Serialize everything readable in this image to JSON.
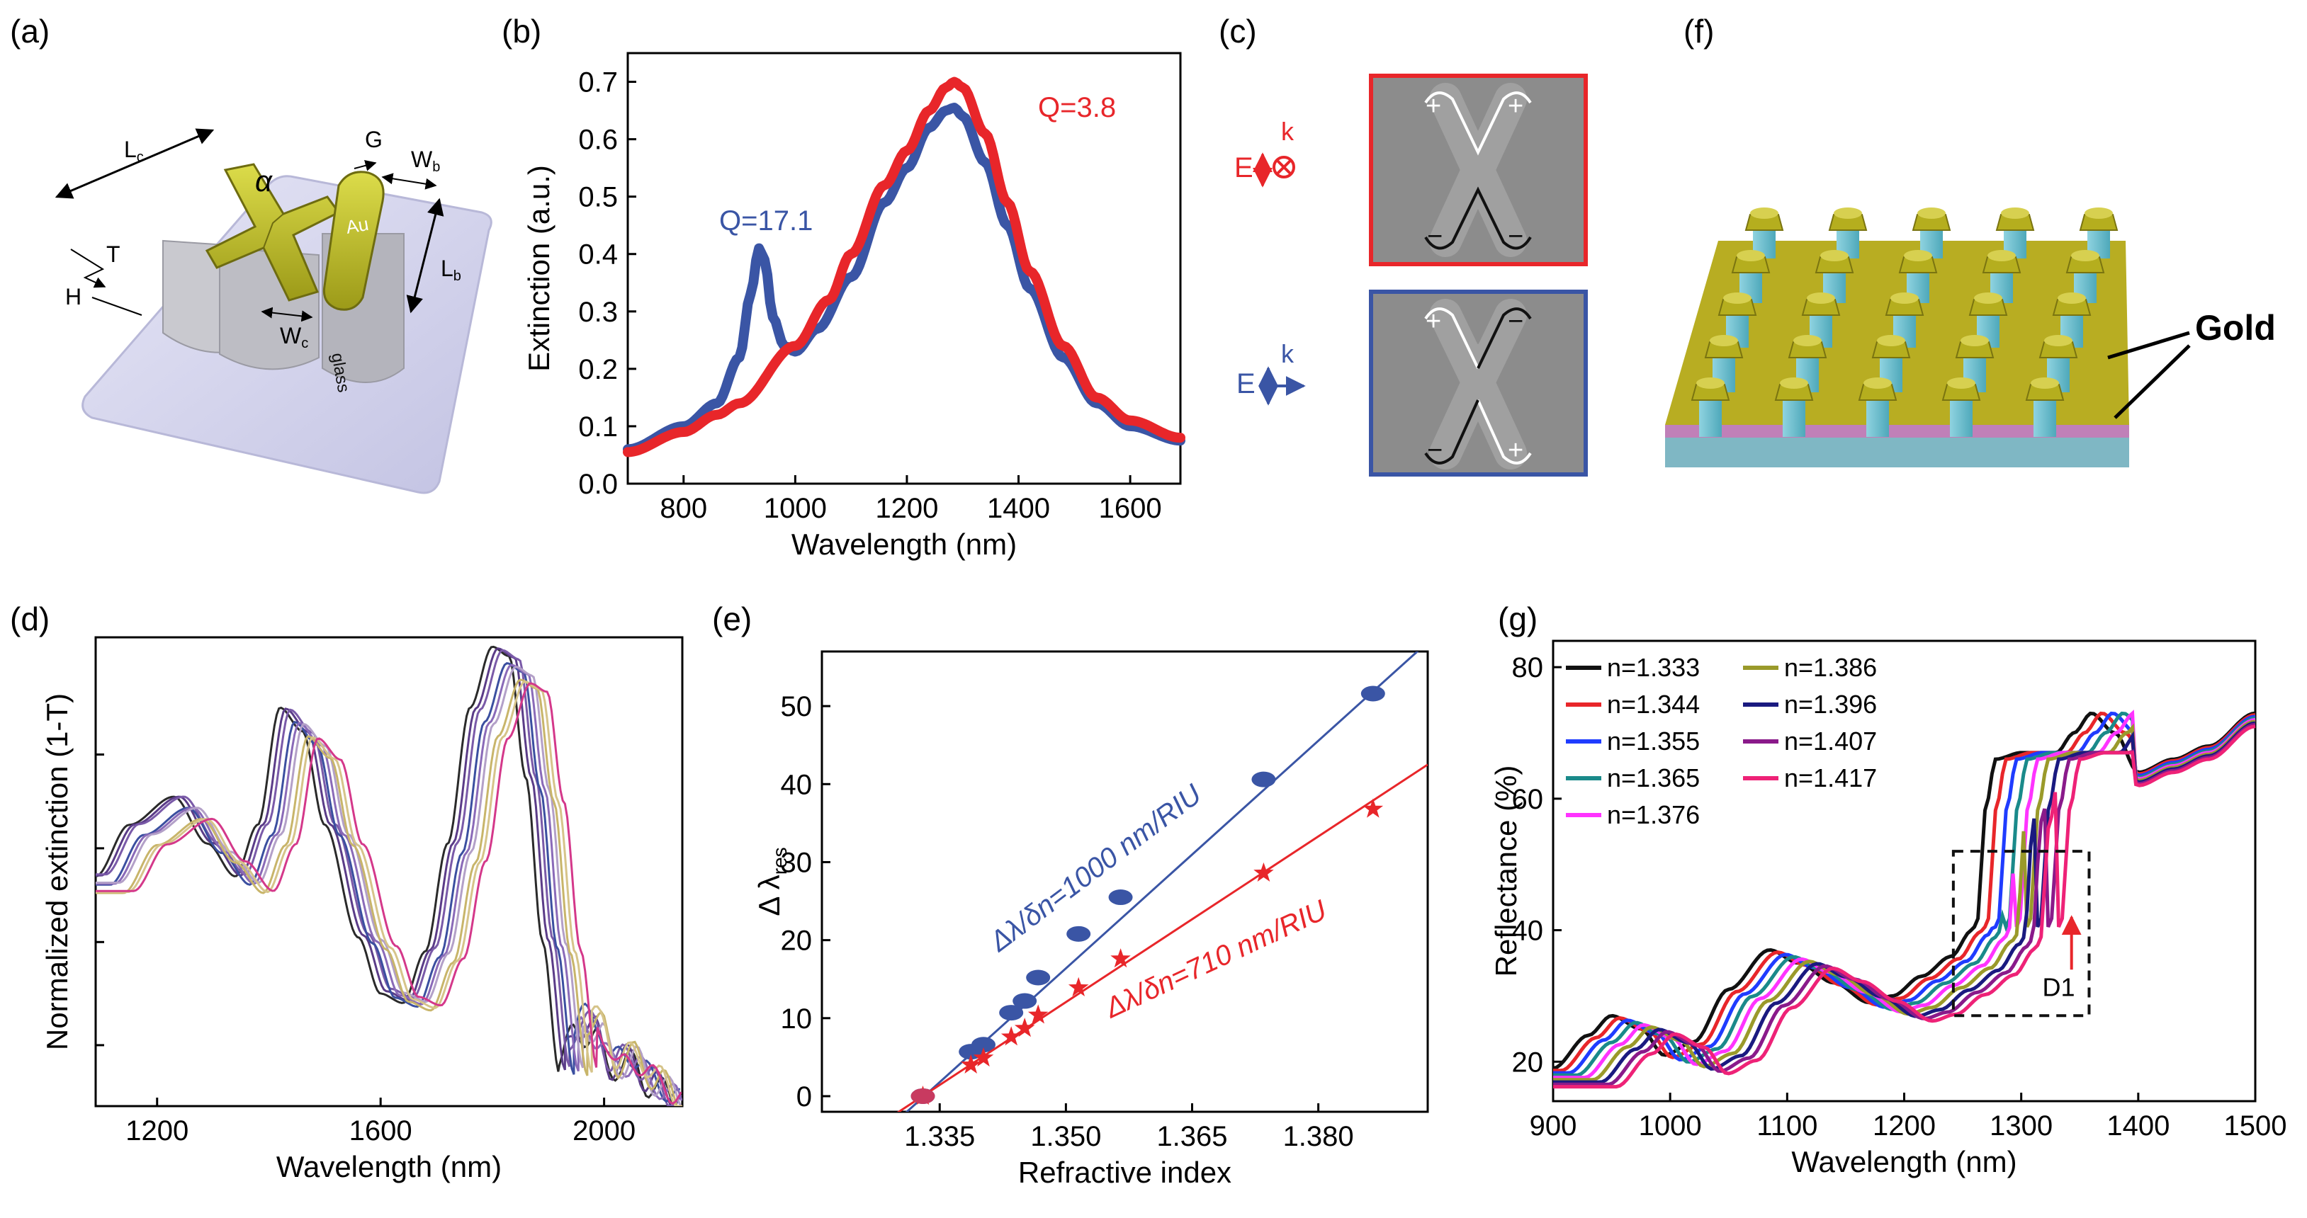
{
  "panels": {
    "a": {
      "label": "(a)",
      "Lc": "L",
      "Lc_sub": "c",
      "alpha": "α",
      "G": "G",
      "Wb": "W",
      "Wb_sub": "b",
      "T": "T",
      "H": "H",
      "Lb": "L",
      "Lb_sub": "b",
      "Wc": "W",
      "Wc_sub": "c",
      "Au": "Au",
      "glass": "glass"
    },
    "c": {
      "label": "(c)",
      "E": "E",
      "k": "k",
      "plus": "+",
      "minus": "−"
    },
    "f": {
      "label": "(f)",
      "gold": "Gold"
    }
  },
  "colors": {
    "blue": "#3a55a5",
    "red": "#e8262a",
    "axis": "#000000"
  },
  "chart_data": [
    {
      "id": "b",
      "label": "(b)",
      "type": "line",
      "xlabel": "Wavelength (nm)",
      "ylabel": "Extinction (a.u.)",
      "xlim": [
        700,
        1690
      ],
      "ylim": [
        0,
        0.75
      ],
      "xticks": [
        800,
        1000,
        1200,
        1400,
        1600
      ],
      "yticks": [
        0.0,
        0.1,
        0.2,
        0.3,
        0.4,
        0.5,
        0.6,
        0.7
      ],
      "annotations": [
        {
          "text": "Q=17.1",
          "color": "#3a55a5"
        },
        {
          "text": "Q=3.8",
          "color": "#e8262a"
        }
      ],
      "series": [
        {
          "name": "blue",
          "color": "#3a55a5",
          "x": [
            700,
            800,
            860,
            900,
            920,
            935,
            945,
            960,
            980,
            1000,
            1040,
            1100,
            1160,
            1200,
            1240,
            1270,
            1285,
            1300,
            1340,
            1380,
            1420,
            1480,
            1540,
            1600,
            1690
          ],
          "y": [
            0.06,
            0.1,
            0.14,
            0.22,
            0.33,
            0.41,
            0.39,
            0.29,
            0.24,
            0.23,
            0.27,
            0.36,
            0.49,
            0.55,
            0.62,
            0.65,
            0.655,
            0.64,
            0.56,
            0.45,
            0.34,
            0.22,
            0.14,
            0.1,
            0.075
          ]
        },
        {
          "name": "red",
          "color": "#e8262a",
          "x": [
            700,
            800,
            860,
            900,
            1000,
            1060,
            1100,
            1160,
            1200,
            1240,
            1270,
            1285,
            1300,
            1340,
            1380,
            1420,
            1480,
            1540,
            1600,
            1690
          ],
          "y": [
            0.055,
            0.09,
            0.12,
            0.14,
            0.24,
            0.32,
            0.4,
            0.52,
            0.58,
            0.65,
            0.69,
            0.7,
            0.69,
            0.61,
            0.49,
            0.37,
            0.24,
            0.15,
            0.11,
            0.08
          ]
        }
      ]
    },
    {
      "id": "d",
      "label": "(d)",
      "type": "line",
      "xlabel": "Wavelength (nm)",
      "ylabel": "Normalized extinction (1-T)",
      "xlim": [
        1090,
        2140
      ],
      "ylim": [
        0,
        1
      ],
      "xticks": [
        1200,
        1600,
        2000
      ],
      "series": [
        {
          "name": "s1",
          "color": "#2a2a2a",
          "shift": 0
        },
        {
          "name": "s2",
          "color": "#5b3c88",
          "shift": 10
        },
        {
          "name": "s3",
          "color": "#7a5aa8",
          "shift": 18
        },
        {
          "name": "s4",
          "color": "#3b4fa0",
          "shift": 26
        },
        {
          "name": "s5",
          "color": "#8a6ab8",
          "shift": 34
        },
        {
          "name": "s6",
          "color": "#b3a0c8",
          "shift": 42
        },
        {
          "name": "s7",
          "color": "#c8b56a",
          "shift": 50
        },
        {
          "name": "s8",
          "color": "#d6c48a",
          "shift": 58
        },
        {
          "name": "s9",
          "color": "#d4388a",
          "shift": 68
        }
      ],
      "base": {
        "x": [
          1090,
          1150,
          1230,
          1290,
          1340,
          1380,
          1420,
          1460,
          1500,
          1560,
          1600,
          1640,
          1680,
          1720,
          1760,
          1800,
          1830,
          1860,
          1890,
          1920
        ],
        "y": [
          0.49,
          0.6,
          0.66,
          0.56,
          0.49,
          0.6,
          0.85,
          0.8,
          0.6,
          0.36,
          0.24,
          0.22,
          0.33,
          0.56,
          0.85,
          0.98,
          0.96,
          0.7,
          0.35,
          0.07
        ]
      },
      "tail": {
        "x": [
          1920,
          1950,
          1980,
          2010,
          2040,
          2080,
          2140
        ],
        "y": [
          0.12,
          0.2,
          0.19,
          0.1,
          0.12,
          0.06,
          0.0
        ]
      }
    },
    {
      "id": "e",
      "label": "(e)",
      "type": "scatter",
      "xlabel": "Refractive index",
      "ylabel": "Δ λ",
      "ylabel_sub": "res",
      "xlim": [
        1.321,
        1.393
      ],
      "ylim": [
        -2,
        57
      ],
      "xticks": [
        1.335,
        1.35,
        1.365,
        1.38
      ],
      "xtick_labels": [
        "1.335",
        "1.350",
        "1.365",
        "1.380"
      ],
      "yticks": [
        0,
        10,
        20,
        30,
        40,
        50
      ],
      "annotations": [
        {
          "text": "Δλ/δn=1000 nm/RIU",
          "color": "#3a55a5"
        },
        {
          "text": "Δλ/δn=710 nm/RIU",
          "color": "#e8262a"
        }
      ],
      "series": [
        {
          "name": "1000 nm/RIU",
          "color": "#3a55a5",
          "marker": "ellipse",
          "x": [
            1.333,
            1.3387,
            1.3402,
            1.3435,
            1.3451,
            1.3467,
            1.3515,
            1.3565,
            1.3735,
            1.3865
          ],
          "y": [
            0,
            5.7,
            6.6,
            10.7,
            12.2,
            15.2,
            20.8,
            25.5,
            40.6,
            51.6
          ],
          "fit": {
            "x0": 1.3276,
            "x1": 1.393,
            "y0": -5.4,
            "y1": 58.2
          }
        },
        {
          "name": "710 nm/RIU",
          "color": "#e8262a",
          "marker": "star",
          "x": [
            1.333,
            1.3387,
            1.3402,
            1.3435,
            1.3451,
            1.3467,
            1.3515,
            1.3565,
            1.3735,
            1.3865
          ],
          "y": [
            0,
            4.0,
            4.9,
            7.6,
            8.7,
            10.4,
            13.9,
            17.6,
            28.6,
            36.8
          ],
          "fit": {
            "x0": 1.3276,
            "x1": 1.393,
            "y0": -3.8,
            "y1": 42.5
          }
        }
      ]
    },
    {
      "id": "g",
      "label": "(g)",
      "type": "line",
      "xlabel": "Wavelength (nm)",
      "ylabel": "Reflectance (%)",
      "xlim": [
        900,
        1500
      ],
      "ylim": [
        14,
        84
      ],
      "xticks": [
        900,
        1000,
        1100,
        1200,
        1300,
        1400,
        1500
      ],
      "yticks": [
        20,
        40,
        60,
        80
      ],
      "annotations": [
        {
          "text": "D1",
          "color": "#000000"
        }
      ],
      "legend_loc": "top-left",
      "series": [
        {
          "name": "n=1.333",
          "color": "#111111",
          "shift": 0
        },
        {
          "name": "n=1.344",
          "color": "#e8262a",
          "shift": 9
        },
        {
          "name": "n=1.355",
          "color": "#1f3cff",
          "shift": 18
        },
        {
          "name": "n=1.365",
          "color": "#1a8a8a",
          "shift": 27
        },
        {
          "name": "n=1.376",
          "color": "#ff33ff",
          "shift": 36
        },
        {
          "name": "n=1.386",
          "color": "#9a9a2a",
          "shift": 45
        },
        {
          "name": "n=1.396",
          "color": "#1a1a80",
          "shift": 54
        },
        {
          "name": "n=1.407",
          "color": "#8a1a8a",
          "shift": 63
        },
        {
          "name": "n=1.417",
          "color": "#ee2277",
          "shift": 72
        }
      ],
      "base": {
        "x": [
          900,
          930,
          950,
          975,
          995,
          1020,
          1050,
          1085,
          1110,
          1140,
          1170,
          1190,
          1215,
          1240,
          1258,
          1262,
          1270,
          1278,
          1300,
          1330,
          1345,
          1360,
          1380,
          1400,
          1430,
          1460,
          1500
        ],
        "y": [
          19,
          24,
          27,
          25,
          21,
          23,
          31,
          37,
          35,
          32,
          29,
          30,
          33,
          36,
          40,
          41,
          59,
          66,
          67,
          67,
          70,
          73,
          70,
          64,
          66,
          68,
          73
        ]
      }
    }
  ]
}
